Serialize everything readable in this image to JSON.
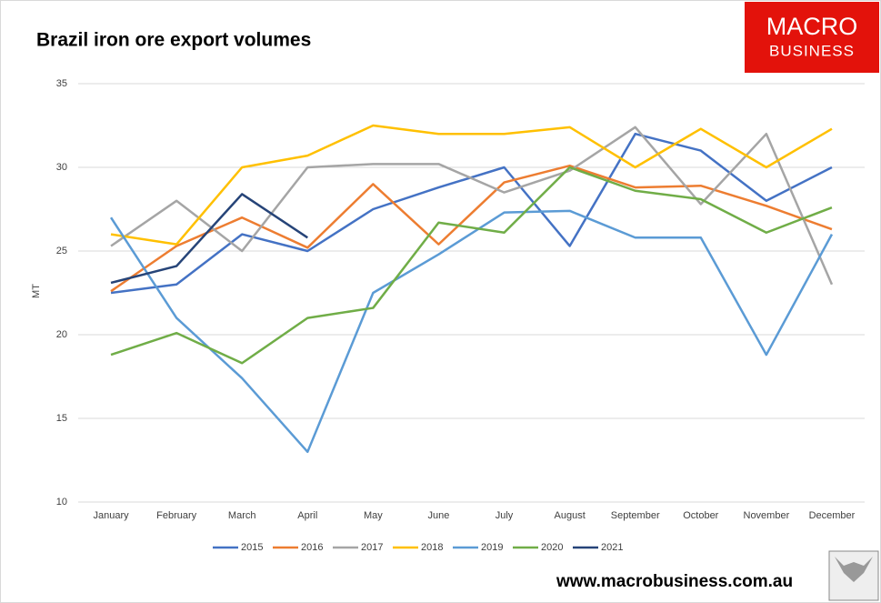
{
  "chart_data": {
    "type": "line",
    "title": "Brazil iron ore export volumes",
    "ylabel": "MT",
    "categories": [
      "January",
      "February",
      "March",
      "April",
      "May",
      "June",
      "July",
      "August",
      "September",
      "October",
      "November",
      "December"
    ],
    "series": [
      {
        "name": "2015",
        "color": "#4472c4",
        "values": [
          22.5,
          23,
          26,
          25,
          27.5,
          28.8,
          30,
          25.3,
          32,
          31,
          28,
          30
        ]
      },
      {
        "name": "2016",
        "color": "#ed7d31",
        "values": [
          22.6,
          25.3,
          27,
          25.2,
          29,
          25.4,
          29.1,
          30.1,
          28.8,
          28.9,
          27.7,
          26.3
        ]
      },
      {
        "name": "2017",
        "color": "#a5a5a5",
        "values": [
          25.3,
          28,
          25,
          30,
          30.2,
          30.2,
          28.5,
          29.8,
          32.4,
          27.8,
          32,
          23
        ]
      },
      {
        "name": "2018",
        "color": "#ffc000",
        "values": [
          26,
          25.4,
          30,
          30.7,
          32.5,
          32,
          32,
          32.4,
          30,
          32.3,
          30,
          32.3
        ]
      },
      {
        "name": "2019",
        "color": "#5b9bd5",
        "values": [
          27,
          21,
          17.4,
          13,
          22.5,
          24.8,
          27.3,
          27.4,
          25.8,
          25.8,
          18.8,
          26
        ]
      },
      {
        "name": "2020",
        "color": "#70ad47",
        "values": [
          18.8,
          20.1,
          18.3,
          21,
          21.6,
          26.7,
          26.1,
          30,
          28.6,
          28.1,
          26.1,
          27.6
        ]
      },
      {
        "name": "2021",
        "color": "#264478",
        "values": [
          23.1,
          24.1,
          28.4,
          25.8,
          null,
          null,
          null,
          null,
          null,
          null,
          null,
          null
        ]
      }
    ],
    "ylim": [
      10,
      35
    ],
    "yticks": [
      10,
      15,
      20,
      25,
      30,
      35
    ],
    "grid": true,
    "legend": "bottom"
  },
  "logo": {
    "line1": "MACRO",
    "line2": "BUSINESS"
  },
  "footer": "www.macrobusiness.com.au"
}
